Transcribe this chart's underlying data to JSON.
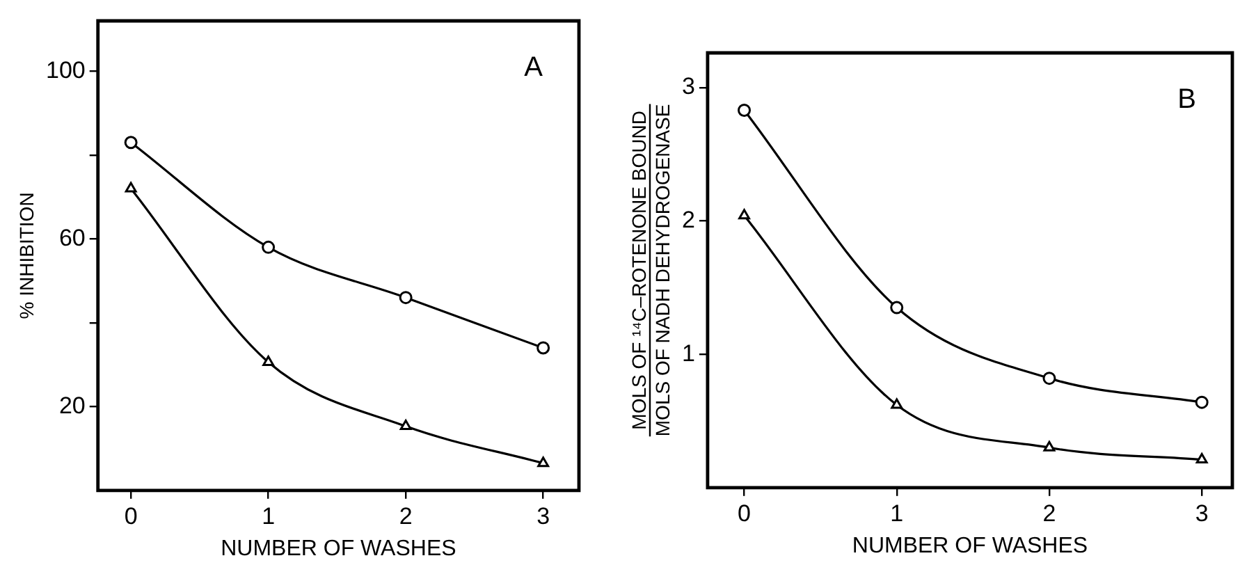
{
  "chart_data": [
    {
      "type": "line",
      "xlabel": "NUMBER OF WASHES",
      "ylabel": "% INHIBITION",
      "annotations": [
        "A"
      ],
      "xlim": [
        -0.24,
        3.26
      ],
      "xticks": [
        0,
        1,
        2,
        3
      ],
      "ylim": [
        0,
        112
      ],
      "yticks": [
        20,
        {
          "value": 40,
          "label": null
        },
        60,
        {
          "value": 80,
          "label": null
        },
        100
      ],
      "grid": false,
      "legend": false,
      "line_style": "solid",
      "x": [
        0,
        1,
        2,
        3
      ],
      "series": [
        {
          "color": "#000000",
          "marker": "circle",
          "values": [
            83,
            58,
            46,
            34
          ]
        },
        {
          "color": "#000000",
          "marker": "triangle",
          "values": [
            72,
            30.6,
            15.3,
            6.5
          ]
        }
      ]
    },
    {
      "type": "line",
      "xlabel": "NUMBER OF WASHES",
      "ylabel": "MOLS OF ¹⁴C–ROTENONE BOUND\nMOLS OF NADH DEHYDROGENASE",
      "annotations": [
        "B"
      ],
      "xlim": [
        -0.24,
        3.2
      ],
      "xticks": [
        0,
        1,
        2,
        3
      ],
      "ylim": [
        0,
        3.26
      ],
      "yticks": [
        1,
        2,
        3
      ],
      "grid": false,
      "legend": false,
      "line_style": "solid",
      "x": [
        0,
        1,
        2,
        3
      ],
      "series": [
        {
          "color": "#000000",
          "marker": "circle",
          "values": [
            2.83,
            1.35,
            0.82,
            0.64
          ]
        },
        {
          "color": "#000000",
          "marker": "triangle",
          "values": [
            2.04,
            0.62,
            0.3,
            0.21
          ]
        }
      ]
    }
  ]
}
